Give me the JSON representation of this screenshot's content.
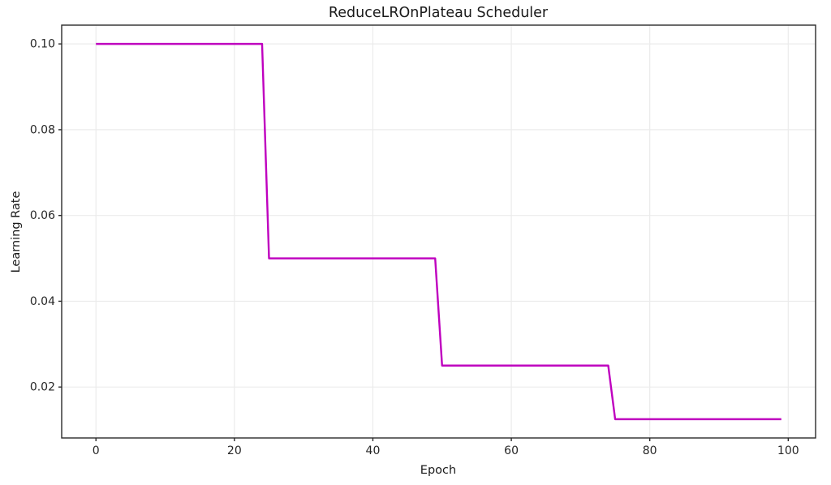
{
  "figure": {
    "background": "#ffffff"
  },
  "chart_data": {
    "type": "line",
    "title": "ReduceLROnPlateau Scheduler",
    "xlabel": "Epoch",
    "ylabel": "Learning Rate",
    "line_color": "#bf00bf",
    "grid": true,
    "grid_color": "#ebebeb",
    "axis_color": "#2b2b2b",
    "text_color": "#1a1a1a",
    "legend": "none",
    "xlim": [
      -4.95,
      103.95
    ],
    "ylim": [
      0.008125,
      0.104375
    ],
    "xticks": [
      0,
      20,
      40,
      60,
      80,
      100
    ],
    "xtick_labels": [
      "0",
      "20",
      "40",
      "60",
      "80",
      "100"
    ],
    "yticks": [
      0.02,
      0.04,
      0.06,
      0.08,
      0.1
    ],
    "ytick_labels": [
      "0.02",
      "0.04",
      "0.06",
      "0.08",
      "0.10"
    ],
    "series": [
      {
        "name": "learning_rate",
        "steps_description": "lr=0.1 for epochs 0-24, 0.05 for 25-49, 0.025 for 50-74, 0.0125 for 75-99",
        "points": [
          [
            0,
            0.1
          ],
          [
            24,
            0.1
          ],
          [
            25,
            0.05
          ],
          [
            49,
            0.05
          ],
          [
            50,
            0.025
          ],
          [
            74,
            0.025
          ],
          [
            75,
            0.0125
          ],
          [
            99,
            0.0125
          ]
        ]
      }
    ]
  }
}
